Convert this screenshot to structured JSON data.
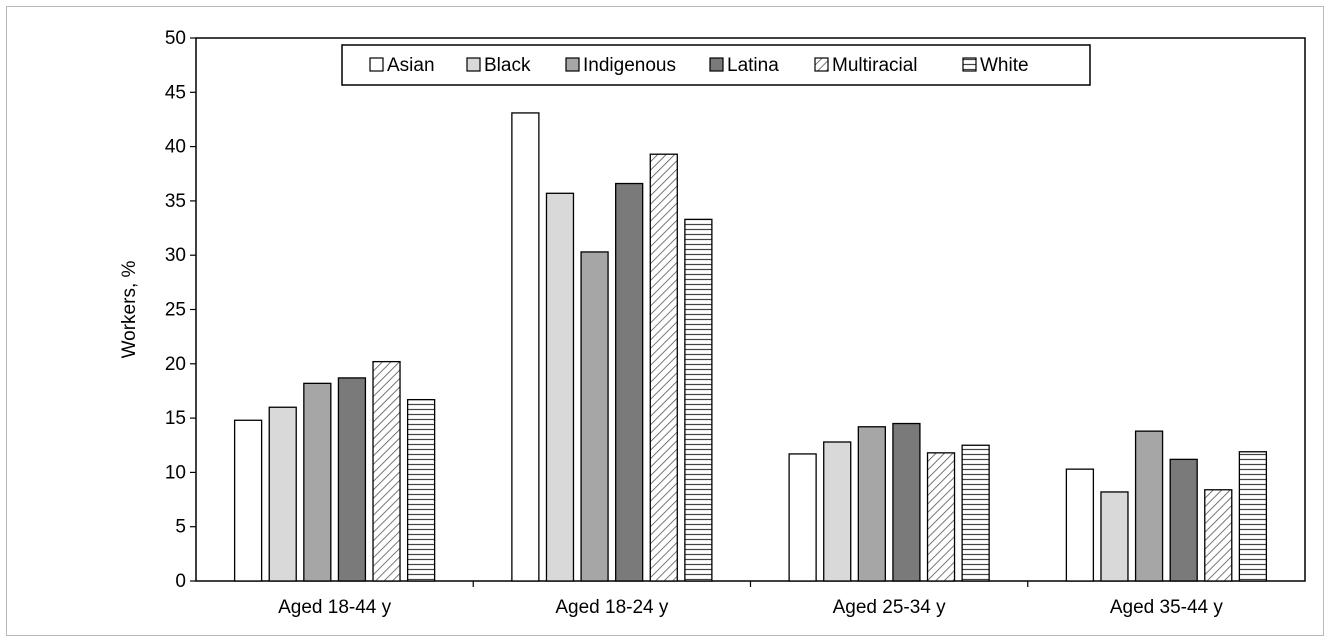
{
  "chart_data": {
    "type": "bar",
    "categories": [
      "Aged 18-44 y",
      "Aged 18-24 y",
      "Aged 25-34 y",
      "Aged 35-44 y"
    ],
    "series": [
      {
        "name": "Asian",
        "values": [
          14.8,
          43.1,
          11.7,
          10.3
        ],
        "fill": "#ffffff",
        "pattern": "solid"
      },
      {
        "name": "Black",
        "values": [
          16.0,
          35.7,
          12.8,
          8.2
        ],
        "fill": "#d9d9d9",
        "pattern": "solid"
      },
      {
        "name": "Indigenous",
        "values": [
          18.2,
          30.3,
          14.2,
          13.8
        ],
        "fill": "#a6a6a6",
        "pattern": "solid"
      },
      {
        "name": "Latina",
        "values": [
          18.7,
          36.6,
          14.5,
          11.2
        ],
        "fill": "#7a7a7a",
        "pattern": "solid"
      },
      {
        "name": "Multiracial",
        "values": [
          20.2,
          39.3,
          11.8,
          8.4
        ],
        "fill": "#ffffff",
        "pattern": "diagonal"
      },
      {
        "name": "White",
        "values": [
          16.7,
          33.3,
          12.5,
          11.9
        ],
        "fill": "#ffffff",
        "pattern": "horizontal"
      }
    ],
    "title": "",
    "xlabel": "",
    "ylabel": "Workers, %",
    "ylim": [
      0,
      50
    ],
    "yticks": [
      "0",
      "5",
      "10",
      "15",
      "20",
      "25",
      "30",
      "35",
      "40",
      "45",
      "50"
    ],
    "grid": false,
    "legend_position": "top-center"
  }
}
